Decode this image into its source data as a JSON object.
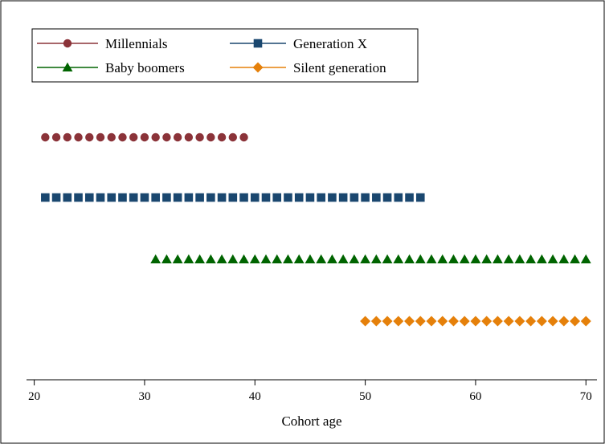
{
  "chart_data": {
    "type": "scatter",
    "title": "",
    "xlabel": "Cohort age",
    "ylabel": "",
    "xlim": [
      19.3,
      71.0
    ],
    "xticks": [
      20,
      30,
      40,
      50,
      60,
      70
    ],
    "grid": false,
    "legend_position": "top-left",
    "series": [
      {
        "name": "Millennials",
        "marker": "circle",
        "color": "#8b3339",
        "x_start": 21,
        "x_end": 39,
        "level": 1
      },
      {
        "name": "Generation X",
        "marker": "square",
        "color": "#1a476f",
        "x_start": 21,
        "x_end": 55,
        "level": 2
      },
      {
        "name": "Baby boomers",
        "marker": "triangle",
        "color": "#006400",
        "x_start": 31,
        "x_end": 70,
        "level": 3
      },
      {
        "name": "Silent generation",
        "marker": "diamond",
        "color": "#e5800a",
        "x_start": 50,
        "x_end": 70,
        "level": 4
      }
    ]
  }
}
